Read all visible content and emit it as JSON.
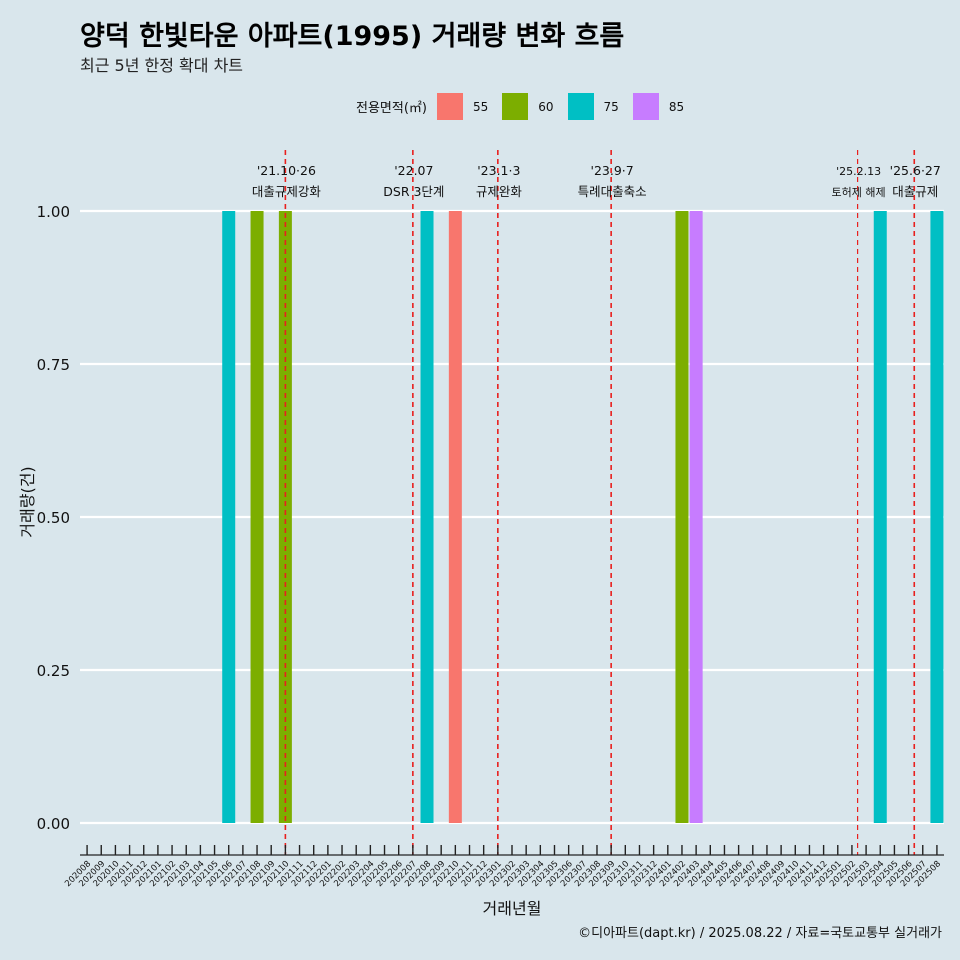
{
  "title": "양덕 한빛타운 아파트(1995) 거래량 변화 흐름",
  "subtitle": "최근 5년 한정 확대 차트",
  "caption": "©디아파트(dapt.kr) / 2025.08.22 / 자료=국토교통부 실거래가",
  "chart_data": {
    "type": "bar",
    "xlabel": "거래년월",
    "ylabel": "거래량(건)",
    "ylim": [
      0,
      1
    ],
    "y_ticks": [
      "0.00",
      "0.25",
      "0.50",
      "0.75",
      "1.00"
    ],
    "legend_title": "전용면적(㎡)",
    "legend_placement": "top",
    "grid": true,
    "categories": [
      "202008",
      "202009",
      "202010",
      "202011",
      "202012",
      "202101",
      "202102",
      "202103",
      "202104",
      "202105",
      "202106",
      "202107",
      "202108",
      "202109",
      "202110",
      "202111",
      "202112",
      "202201",
      "202202",
      "202203",
      "202204",
      "202205",
      "202206",
      "202207",
      "202208",
      "202209",
      "202210",
      "202211",
      "202212",
      "202301",
      "202302",
      "202303",
      "202304",
      "202305",
      "202306",
      "202307",
      "202308",
      "202309",
      "202310",
      "202311",
      "202312",
      "202401",
      "202402",
      "202403",
      "202404",
      "202405",
      "202406",
      "202407",
      "202408",
      "202409",
      "202410",
      "202411",
      "202412",
      "202501",
      "202502",
      "202503",
      "202504",
      "202505",
      "202506",
      "202507",
      "202508"
    ],
    "series": [
      {
        "name": "55",
        "color": "#f8766d"
      },
      {
        "name": "60",
        "color": "#7cae00"
      },
      {
        "name": "75",
        "color": "#00bfc4"
      },
      {
        "name": "85",
        "color": "#c77cff"
      }
    ],
    "bars": [
      {
        "month": "202106",
        "series": "75",
        "value": 1
      },
      {
        "month": "202108",
        "series": "60",
        "value": 1
      },
      {
        "month": "202110",
        "series": "60",
        "value": 1
      },
      {
        "month": "202208",
        "series": "75",
        "value": 1
      },
      {
        "month": "202210",
        "series": "55",
        "value": 1
      },
      {
        "month": "202402",
        "series": "60",
        "value": 1
      },
      {
        "month": "202403",
        "series": "85",
        "value": 1
      },
      {
        "month": "202504",
        "series": "75",
        "value": 1
      },
      {
        "month": "202508",
        "series": "75",
        "value": 1
      }
    ],
    "events": [
      {
        "month": 14.0,
        "date": "'21.10·26",
        "text": "대출규제강화"
      },
      {
        "month": 23.0,
        "date": "'22.07",
        "text": "DSR 3단계"
      },
      {
        "month": 29.0,
        "date": "'23.1·3",
        "text": "규제완화"
      },
      {
        "month": 37.0,
        "date": "'23.9·7",
        "text": "특례대출축소"
      },
      {
        "month": 54.4,
        "date": "'25.2.13",
        "text": "토허제 해제"
      },
      {
        "month": 58.4,
        "date": "'25.6·27",
        "text": "대출규제"
      }
    ]
  }
}
